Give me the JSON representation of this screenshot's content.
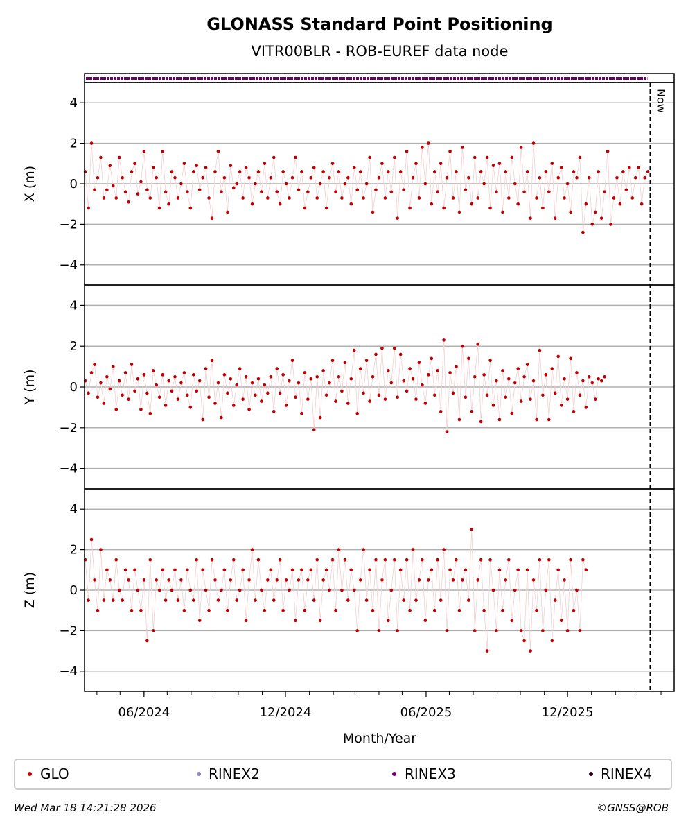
{
  "chart_data": {
    "type": "scatter",
    "title": "GLONASS Standard Point Positioning",
    "subtitle": "VITR00BLR - ROB-EUREF data node",
    "xlabel": "Month/Year",
    "x_domain": [
      "2024-03-16",
      "2026-04-18"
    ],
    "x_ticklabels": [
      {
        "date": "2024-06-01",
        "label": "06/2024"
      },
      {
        "date": "2024-12-01",
        "label": "12/2024"
      },
      {
        "date": "2025-06-01",
        "label": "06/2025"
      },
      {
        "date": "2025-12-01",
        "label": "12/2025"
      }
    ],
    "now": {
      "date": "2026-03-18",
      "label": "Now"
    },
    "ylim": [
      -5,
      5
    ],
    "yticks": [
      -4,
      -2,
      0,
      2,
      4
    ],
    "grid": true,
    "series_start": "2024-03-17",
    "series_step_days": 4,
    "colors": {
      "GLO": "#c00000",
      "RINEX2": "#8c88c8",
      "RINEX3": "#6a0068",
      "RINEX4": "#2a0020",
      "link": "#f3d0d0"
    },
    "rinex_strip": {
      "format": "RINEX3",
      "from": "2024-03-16",
      "to": "2026-03-18"
    },
    "panels": [
      {
        "ylabel": "X (m)",
        "values": [
          0.6,
          -1.2,
          2.0,
          -0.3,
          0.3,
          1.3,
          -0.7,
          -0.3,
          0.9,
          -0.1,
          -0.7,
          1.3,
          0.3,
          -0.4,
          -0.9,
          0.6,
          1.0,
          -0.5,
          0.1,
          1.6,
          -0.3,
          -0.7,
          0.8,
          0.3,
          -1.2,
          1.6,
          -0.4,
          -1.0,
          0.6,
          0.3,
          -0.7,
          0.0,
          1.0,
          -0.4,
          -1.2,
          0.6,
          0.9,
          -0.3,
          0.3,
          0.8,
          -0.7,
          -1.7,
          0.6,
          1.6,
          -0.4,
          0.3,
          -1.4,
          0.9,
          -0.2,
          0.0,
          0.6,
          -0.7,
          0.8,
          0.3,
          -1.0,
          0.0,
          0.6,
          -0.4,
          1.0,
          -0.7,
          0.3,
          1.3,
          -0.4,
          -1.0,
          0.6,
          0.0,
          -0.7,
          0.3,
          1.3,
          -0.3,
          0.6,
          -1.2,
          -0.4,
          0.3,
          0.8,
          -0.7,
          0.0,
          0.6,
          -1.2,
          0.3,
          1.0,
          -0.4,
          0.6,
          -0.7,
          0.0,
          0.3,
          -1.0,
          0.8,
          -0.3,
          0.6,
          -0.7,
          0.0,
          1.3,
          -1.4,
          -0.3,
          0.3,
          1.0,
          -0.7,
          0.6,
          -0.4,
          1.3,
          -1.7,
          0.6,
          -0.3,
          1.6,
          -1.2,
          0.3,
          1.0,
          -0.7,
          1.8,
          0.0,
          2.0,
          -1.0,
          0.6,
          -0.4,
          1.0,
          -1.2,
          0.3,
          1.6,
          -0.7,
          0.6,
          -1.4,
          1.8,
          -0.3,
          0.3,
          -1.0,
          1.3,
          -0.7,
          0.6,
          0.0,
          1.3,
          -1.2,
          0.9,
          -0.4,
          1.0,
          -1.4,
          0.6,
          -0.7,
          1.3,
          0.0,
          -1.0,
          1.8,
          -0.4,
          0.6,
          -1.7,
          2.0,
          -0.7,
          0.3,
          -1.2,
          0.6,
          -0.4,
          1.0,
          -1.7,
          0.3,
          0.8,
          -0.7,
          0.0,
          -1.4,
          0.6,
          0.3,
          1.3,
          -2.4,
          -1.0,
          0.3,
          -2.0,
          -1.4,
          0.6,
          -1.7,
          -0.4,
          1.6,
          -2.0,
          -0.7,
          0.3,
          -1.0,
          0.6,
          -0.3,
          0.8,
          -0.7,
          0.3,
          0.8,
          -1.0,
          0.3,
          0.6
        ]
      },
      {
        "ylabel": "Y (m)",
        "values": [
          0.3,
          -0.3,
          0.7,
          1.1,
          -0.5,
          0.2,
          -0.8,
          0.5,
          -0.1,
          1.0,
          -1.1,
          0.3,
          -0.4,
          0.7,
          -0.6,
          1.1,
          -0.2,
          0.4,
          -1.1,
          0.6,
          -0.3,
          -1.3,
          0.8,
          0.1,
          -0.5,
          0.6,
          -0.9,
          0.3,
          -0.2,
          0.5,
          -0.6,
          0.2,
          0.7,
          -0.4,
          -1.0,
          0.6,
          -0.2,
          0.3,
          -1.6,
          0.9,
          -0.5,
          1.3,
          -0.8,
          0.2,
          -1.5,
          0.6,
          -0.3,
          0.4,
          -0.9,
          0.1,
          0.9,
          -0.6,
          0.5,
          -1.1,
          0.2,
          -0.4,
          0.4,
          -0.7,
          0.1,
          -0.3,
          0.5,
          -1.2,
          0.9,
          -0.3,
          0.6,
          -0.9,
          0.3,
          1.3,
          -0.5,
          0.2,
          -1.3,
          0.7,
          -0.6,
          0.4,
          -2.1,
          0.5,
          -1.5,
          0.8,
          -0.4,
          0.2,
          1.3,
          -0.7,
          0.5,
          -0.2,
          1.2,
          -0.8,
          0.4,
          1.8,
          -1.3,
          0.9,
          -0.3,
          1.3,
          -0.7,
          0.5,
          1.6,
          -0.4,
          1.9,
          -0.6,
          0.8,
          0.2,
          1.9,
          -0.5,
          1.6,
          0.3,
          -0.2,
          0.9,
          0.4,
          -0.6,
          1.2,
          0.1,
          -0.8,
          0.6,
          1.4,
          -0.4,
          0.8,
          -1.2,
          2.3,
          -2.2,
          0.7,
          -0.3,
          1.0,
          -1.6,
          2.0,
          -0.5,
          1.4,
          -1.2,
          0.5,
          2.1,
          -1.7,
          0.6,
          -0.4,
          1.3,
          -0.9,
          0.3,
          -1.6,
          0.8,
          -0.5,
          0.4,
          -1.3,
          0.2,
          0.9,
          -0.7,
          0.5,
          1.1,
          -0.6,
          0.3,
          -1.6,
          1.8,
          -0.4,
          0.6,
          -1.6,
          0.9,
          -0.3,
          1.5,
          -0.9,
          0.4,
          -0.6,
          1.4,
          -1.2,
          0.7,
          -0.4,
          0.3,
          -1.0,
          0.5,
          0.2,
          -0.6,
          0.4,
          0.3,
          0.5
        ]
      },
      {
        "ylabel": "Z (m)",
        "values": [
          1.5,
          -0.5,
          2.5,
          0.5,
          -1.0,
          2.0,
          -0.5,
          1.0,
          0.5,
          -0.5,
          1.5,
          0.0,
          -0.5,
          1.0,
          0.5,
          -1.0,
          1.0,
          0.0,
          -1.0,
          0.5,
          -2.5,
          1.5,
          -2.0,
          0.5,
          0.0,
          1.0,
          -0.5,
          0.5,
          0.0,
          1.0,
          -0.5,
          0.5,
          -1.0,
          1.0,
          0.0,
          -0.5,
          1.5,
          -1.5,
          1.0,
          0.0,
          -1.0,
          1.5,
          0.5,
          -0.5,
          0.0,
          1.0,
          -1.0,
          0.5,
          1.5,
          -0.5,
          0.0,
          1.0,
          -1.5,
          0.5,
          2.0,
          -0.5,
          1.5,
          0.0,
          -1.0,
          0.5,
          1.0,
          -0.5,
          0.5,
          1.5,
          -1.0,
          0.5,
          0.0,
          1.0,
          -1.5,
          0.5,
          1.0,
          -1.0,
          0.5,
          1.0,
          -0.5,
          1.5,
          -1.5,
          0.5,
          1.0,
          0.0,
          1.5,
          -1.0,
          2.0,
          0.0,
          1.5,
          -0.5,
          1.0,
          0.0,
          -2.0,
          0.5,
          2.0,
          -0.5,
          1.0,
          -1.0,
          1.5,
          -2.0,
          0.5,
          1.5,
          -1.5,
          0.0,
          1.5,
          -2.0,
          1.0,
          -0.5,
          1.5,
          -1.0,
          2.0,
          -0.5,
          0.5,
          1.5,
          -1.5,
          0.5,
          1.0,
          -1.0,
          1.5,
          -0.5,
          2.0,
          -2.0,
          1.0,
          0.5,
          1.5,
          -1.0,
          0.5,
          1.0,
          -0.5,
          3.0,
          -2.0,
          0.5,
          1.5,
          -1.0,
          -3.0,
          1.5,
          0.0,
          -2.0,
          1.0,
          -1.0,
          0.5,
          1.5,
          -1.5,
          0.0,
          1.0,
          -2.0,
          -2.5,
          1.0,
          -3.0,
          0.5,
          -1.0,
          1.5,
          -2.0,
          0.0,
          1.5,
          -2.5,
          -0.5,
          1.0,
          -1.5,
          0.5,
          -2.0,
          1.5,
          -1.0,
          0.0,
          -2.0,
          1.5,
          1.0
        ]
      }
    ],
    "legend": [
      "GLO",
      "RINEX2",
      "RINEX3",
      "RINEX4"
    ]
  },
  "footer": {
    "timestamp": "Wed Mar 18 14:21:28 2026",
    "copyright": "©GNSS@ROB"
  }
}
